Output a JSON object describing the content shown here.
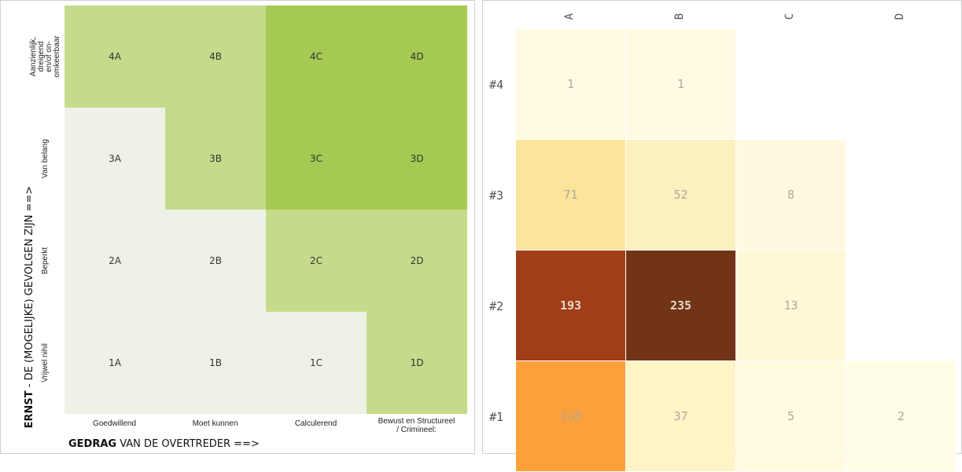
{
  "matrix": {
    "x_title_bold": "GEDRAG",
    "x_title_rest": " VAN DE OVERTREDER  ==>",
    "y_title_bold": "ERNST",
    "y_title_rest": " - DE (MOGELIJKE) GEVOLGEN ZIJN  ==>",
    "columns": [
      "Goedwillend",
      "Moet kunnen",
      "Calculerend",
      "Bewust en Structureel\n/ Crimineel:"
    ],
    "rows": [
      "Aanzienlijk,\ndreigend\nen/of on-\nomkeerbaar",
      "Van belang",
      "Beperkt",
      "Vrijwel nihil"
    ],
    "cells": [
      [
        "4A",
        "4B",
        "4C",
        "4D"
      ],
      [
        "3A",
        "3B",
        "3C",
        "3D"
      ],
      [
        "2A",
        "2B",
        "2C",
        "2D"
      ],
      [
        "1A",
        "1B",
        "1C",
        "1D"
      ]
    ],
    "cell_levels": [
      [
        1,
        1,
        2,
        2
      ],
      [
        0,
        1,
        2,
        2
      ],
      [
        0,
        0,
        1,
        1
      ],
      [
        0,
        0,
        0,
        1
      ]
    ],
    "level_colors": [
      "#eef2e6",
      "#c5db8b",
      "#a5c952"
    ]
  },
  "chart_data": {
    "type": "heatmap",
    "x_categories": [
      "A",
      "B",
      "C",
      "D"
    ],
    "y_categories": [
      "#4",
      "#3",
      "#2",
      "#1"
    ],
    "values": [
      [
        1,
        1,
        null,
        null
      ],
      [
        71,
        52,
        8,
        null
      ],
      [
        193,
        235,
        13,
        null
      ],
      [
        128,
        37,
        5,
        2
      ]
    ],
    "colors": [
      [
        "#fffbe3",
        "#fffbe3",
        null,
        null
      ],
      [
        "#fde49b",
        "#fdf0bf",
        "#fffadf",
        null
      ],
      [
        "#a03e17",
        "#713416",
        "#fff8d8",
        null
      ],
      [
        "#fea039",
        "#fef4c6",
        "#fffbe1",
        "#fffde6"
      ]
    ]
  }
}
